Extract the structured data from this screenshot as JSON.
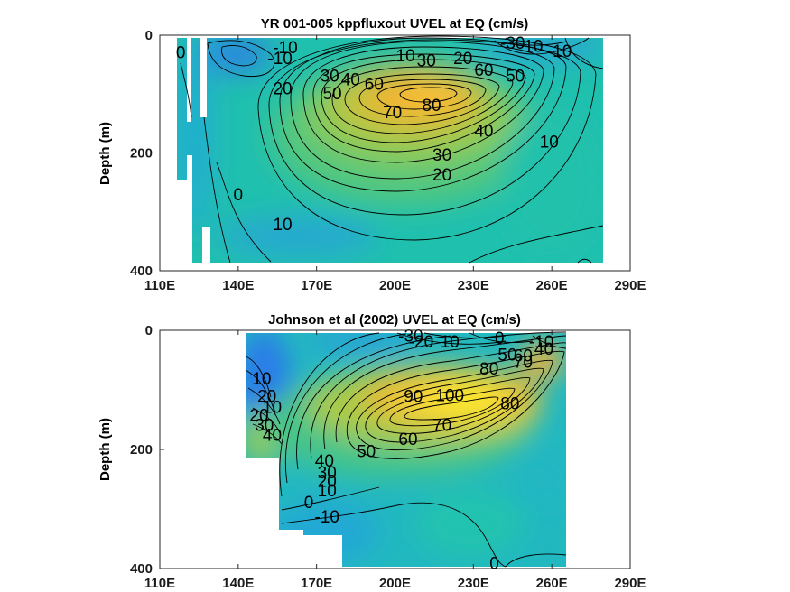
{
  "chart_data": [
    {
      "type": "heatmap",
      "title": "YR 001-005 kppfluxout UVEL at EQ (cm/s)",
      "xlabel": "",
      "ylabel": "Depth (m)",
      "xlim": [
        110,
        290
      ],
      "ylim": [
        0,
        400
      ],
      "y_reversed": true,
      "xticks": [
        "110E",
        "140E",
        "170E",
        "200E",
        "230E",
        "260E",
        "290E"
      ],
      "yticks": [
        "0",
        "200",
        "400"
      ],
      "core": {
        "lon": 212,
        "depth": 90,
        "max": 85
      },
      "contour_labels": [
        {
          "text": "0",
          "lon": 118,
          "depth": 28
        },
        {
          "text": "-10",
          "lon": 158,
          "depth": 20
        },
        {
          "text": "-10",
          "lon": 156,
          "depth": 38
        },
        {
          "text": "20",
          "lon": 157,
          "depth": 90
        },
        {
          "text": "30",
          "lon": 175,
          "depth": 68
        },
        {
          "text": "40",
          "lon": 183,
          "depth": 74
        },
        {
          "text": "50",
          "lon": 176,
          "depth": 98
        },
        {
          "text": "60",
          "lon": 192,
          "depth": 82
        },
        {
          "text": "70",
          "lon": 199,
          "depth": 130
        },
        {
          "text": "80",
          "lon": 214,
          "depth": 118
        },
        {
          "text": "10",
          "lon": 204,
          "depth": 34
        },
        {
          "text": "30",
          "lon": 212,
          "depth": 42
        },
        {
          "text": "20",
          "lon": 226,
          "depth": 38
        },
        {
          "text": "60",
          "lon": 234,
          "depth": 58
        },
        {
          "text": "50",
          "lon": 246,
          "depth": 68
        },
        {
          "text": "-30",
          "lon": 245,
          "depth": 12
        },
        {
          "text": "10",
          "lon": 253,
          "depth": 18
        },
        {
          "text": "10",
          "lon": 264,
          "depth": 26
        },
        {
          "text": "40",
          "lon": 234,
          "depth": 162
        },
        {
          "text": "30",
          "lon": 218,
          "depth": 202
        },
        {
          "text": "20",
          "lon": 218,
          "depth": 236
        },
        {
          "text": "10",
          "lon": 259,
          "depth": 180
        },
        {
          "text": "0",
          "lon": 140,
          "depth": 270
        },
        {
          "text": "10",
          "lon": 157,
          "depth": 320
        }
      ]
    },
    {
      "type": "heatmap",
      "title": "Johnson et al (2002) UVEL at EQ (cm/s)",
      "xlabel": "",
      "ylabel": "Depth (m)",
      "xlim": [
        110,
        290
      ],
      "ylim": [
        0,
        400
      ],
      "y_reversed": true,
      "xticks": [
        "110E",
        "140E",
        "170E",
        "200E",
        "230E",
        "260E",
        "290E"
      ],
      "yticks": [
        "0",
        "200",
        "400"
      ],
      "core": {
        "lon": 222,
        "depth": 105,
        "max": 105
      },
      "contour_labels": [
        {
          "text": "-30",
          "lon": 206,
          "depth": 8
        },
        {
          "text": "-20",
          "lon": 210,
          "depth": 18
        },
        {
          "text": "10",
          "lon": 221,
          "depth": 18
        },
        {
          "text": "0",
          "lon": 240,
          "depth": 12
        },
        {
          "text": "-10",
          "lon": 256,
          "depth": 18
        },
        {
          "text": "50",
          "lon": 243,
          "depth": 40
        },
        {
          "text": "60",
          "lon": 249,
          "depth": 42
        },
        {
          "text": "40",
          "lon": 257,
          "depth": 30
        },
        {
          "text": "70",
          "lon": 249,
          "depth": 52
        },
        {
          "text": "80",
          "lon": 236,
          "depth": 64
        },
        {
          "text": "90",
          "lon": 207,
          "depth": 110
        },
        {
          "text": "100",
          "lon": 221,
          "depth": 108
        },
        {
          "text": "80",
          "lon": 244,
          "depth": 122
        },
        {
          "text": "70",
          "lon": 218,
          "depth": 158
        },
        {
          "text": "60",
          "lon": 205,
          "depth": 182
        },
        {
          "text": "50",
          "lon": 189,
          "depth": 202
        },
        {
          "text": "10",
          "lon": 149,
          "depth": 80
        },
        {
          "text": "20",
          "lon": 151,
          "depth": 110
        },
        {
          "text": "10",
          "lon": 153,
          "depth": 128
        },
        {
          "text": "20",
          "lon": 148,
          "depth": 142
        },
        {
          "text": "30",
          "lon": 150,
          "depth": 158
        },
        {
          "text": "40",
          "lon": 153,
          "depth": 175
        },
        {
          "text": "40",
          "lon": 173,
          "depth": 218
        },
        {
          "text": "30",
          "lon": 174,
          "depth": 238
        },
        {
          "text": "20",
          "lon": 174,
          "depth": 252
        },
        {
          "text": "10",
          "lon": 174,
          "depth": 268
        },
        {
          "text": "0",
          "lon": 167,
          "depth": 288
        },
        {
          "text": "-10",
          "lon": 174,
          "depth": 312
        },
        {
          "text": "0",
          "lon": 238,
          "depth": 390
        }
      ]
    }
  ]
}
